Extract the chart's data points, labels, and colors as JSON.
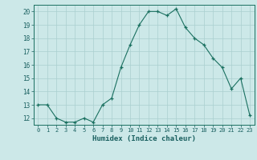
{
  "x": [
    0,
    1,
    2,
    3,
    4,
    5,
    6,
    7,
    8,
    9,
    10,
    11,
    12,
    13,
    14,
    15,
    16,
    17,
    18,
    19,
    20,
    21,
    22,
    23
  ],
  "y": [
    13.0,
    13.0,
    12.0,
    11.7,
    11.7,
    12.0,
    11.7,
    13.0,
    13.5,
    15.8,
    17.5,
    19.0,
    20.0,
    20.0,
    19.7,
    20.2,
    18.8,
    18.0,
    17.5,
    16.5,
    15.8,
    14.2,
    15.0,
    12.2
  ],
  "xlabel": "Humidex (Indice chaleur)",
  "yticks": [
    12,
    13,
    14,
    15,
    16,
    17,
    18,
    19,
    20
  ],
  "xticks": [
    0,
    1,
    2,
    3,
    4,
    5,
    6,
    7,
    8,
    9,
    10,
    11,
    12,
    13,
    14,
    15,
    16,
    17,
    18,
    19,
    20,
    21,
    22,
    23
  ],
  "line_color": "#1a7060",
  "bg_color": "#cce8e8",
  "grid_color": "#aacfcf",
  "tick_color": "#1a6060",
  "label_color": "#1a6060"
}
